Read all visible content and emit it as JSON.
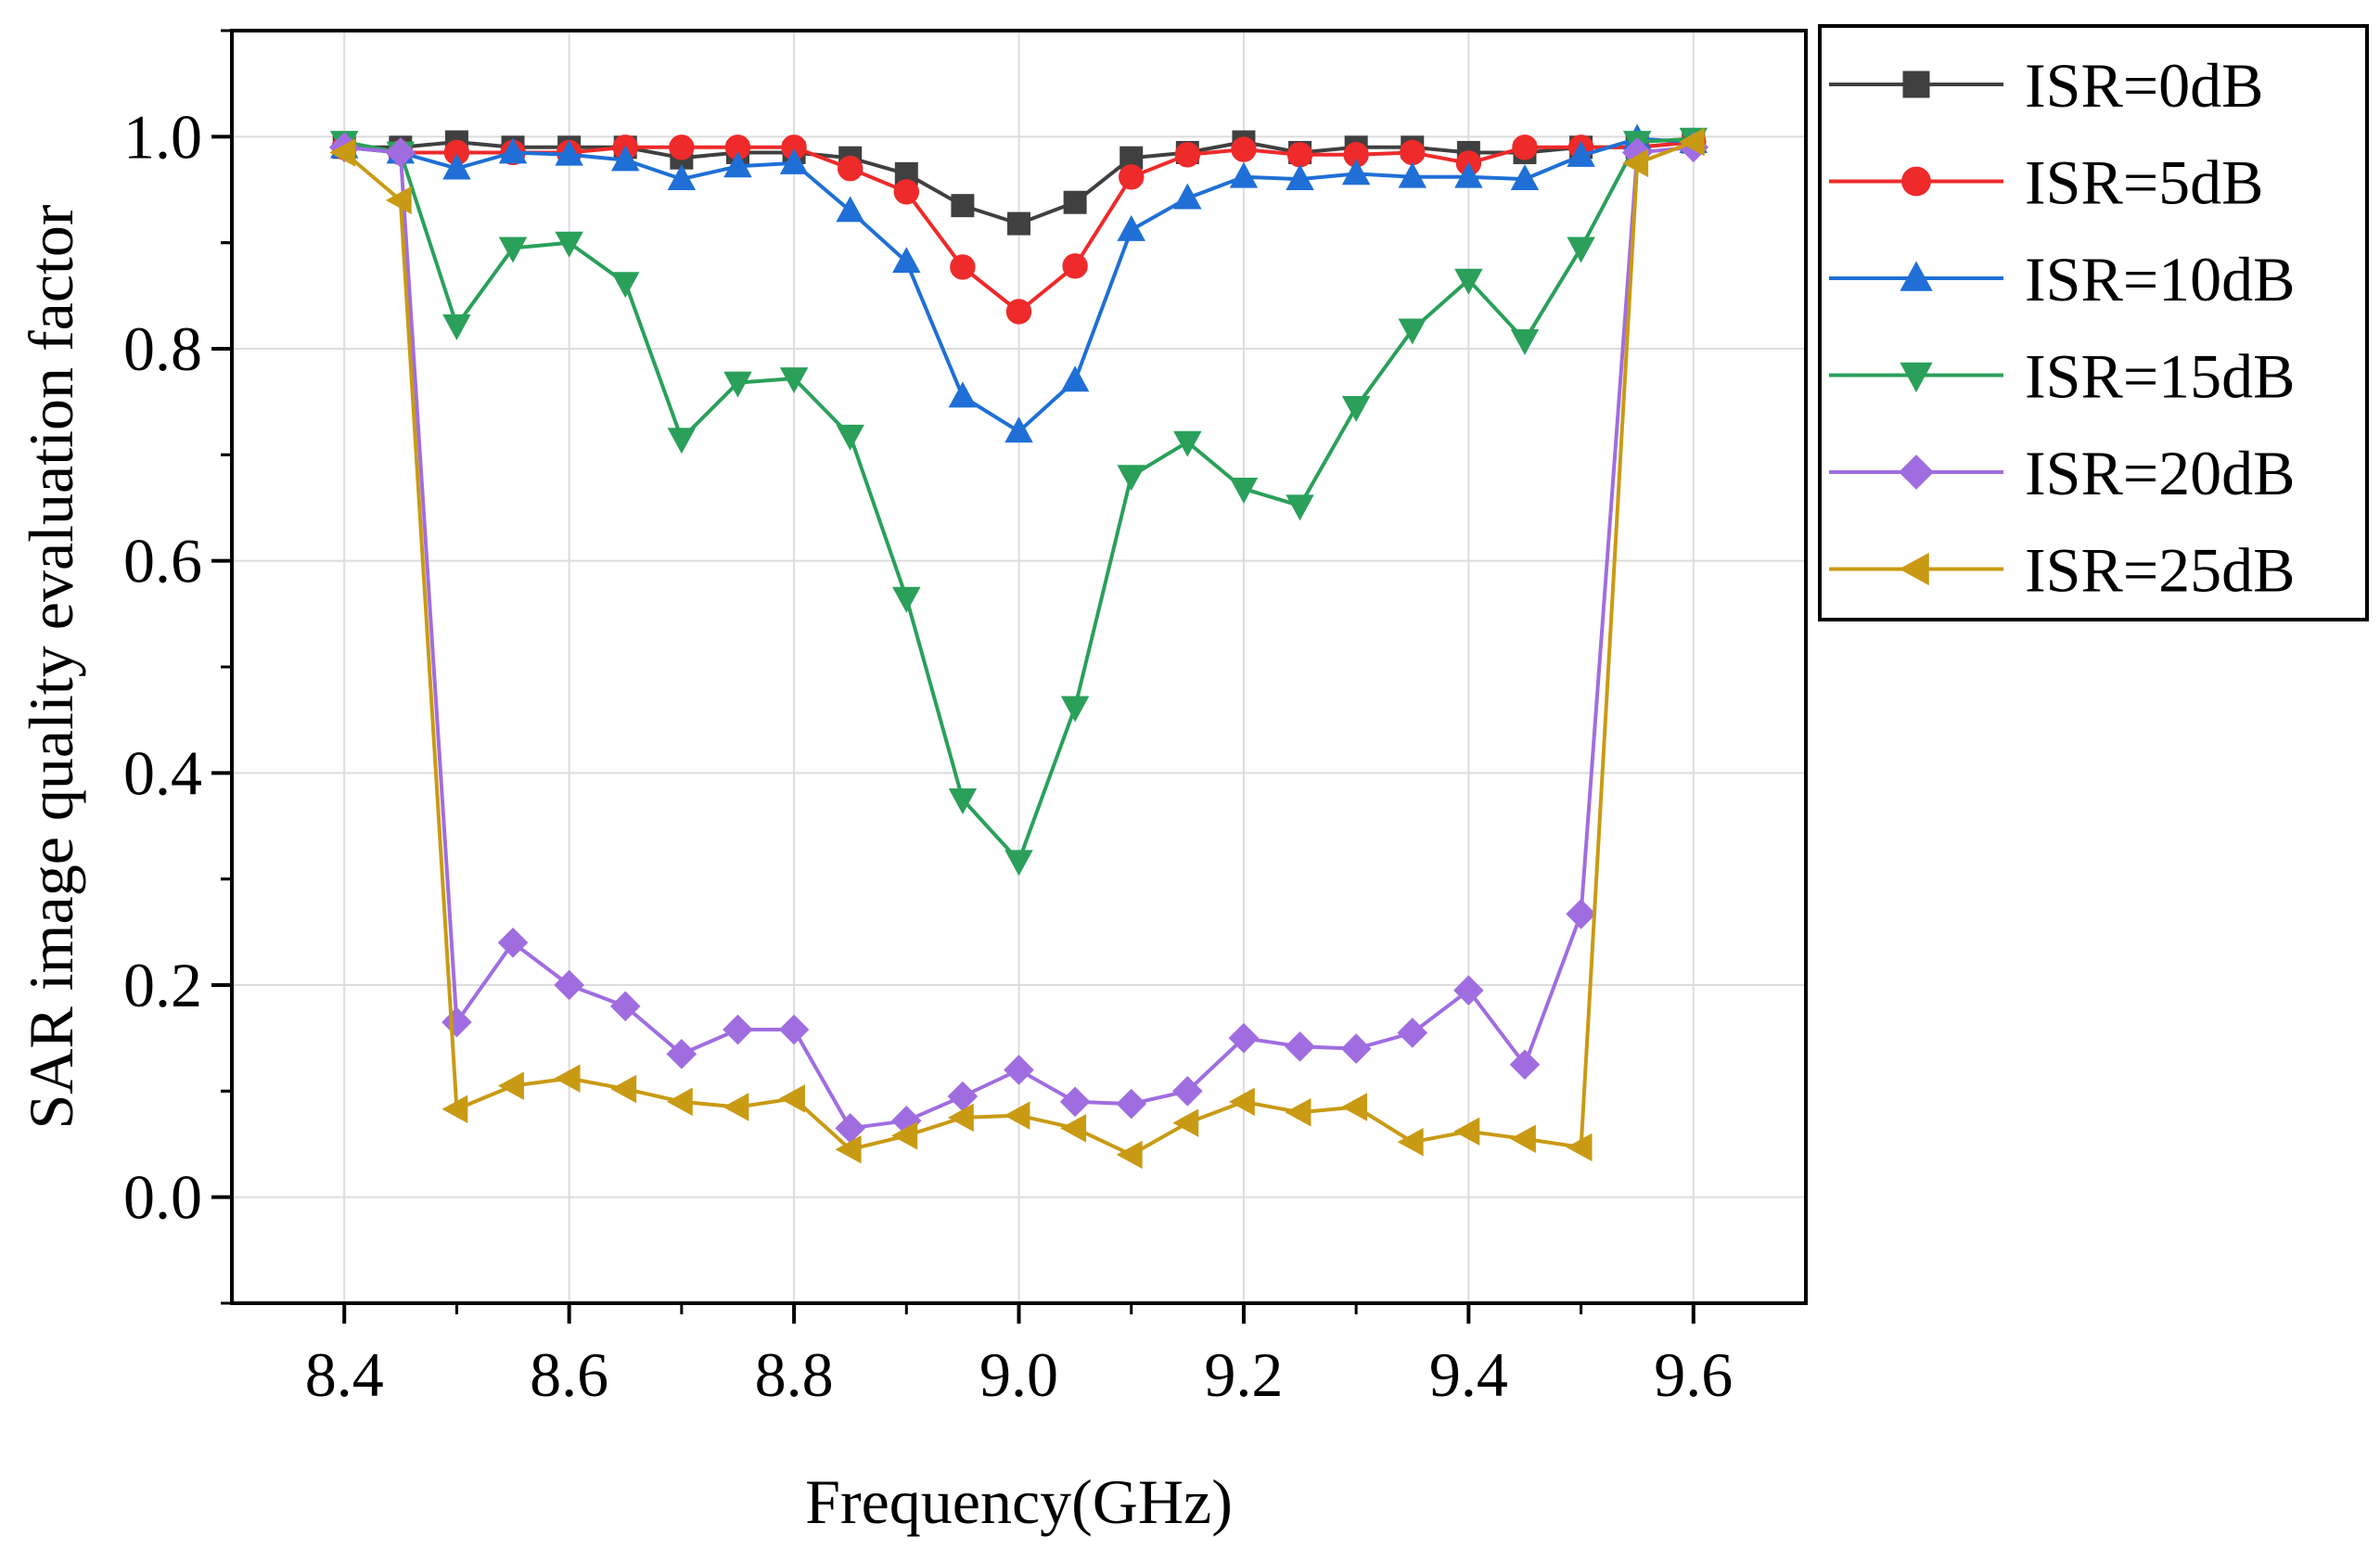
{
  "chart_data": {
    "type": "line",
    "title": "",
    "xlabel": "Frequency(GHz)",
    "ylabel": "SAR image quality evaluation factor",
    "xlim": [
      8.3,
      9.7
    ],
    "ylim": [
      -0.1,
      1.1
    ],
    "xticks": [
      8.4,
      8.6,
      8.8,
      9.0,
      9.2,
      9.4,
      9.6
    ],
    "xtick_labels": [
      "8.4",
      "8.6",
      "8.8",
      "9.0",
      "9.2",
      "9.4",
      "9.6"
    ],
    "yticks": [
      0.0,
      0.2,
      0.4,
      0.6,
      0.8,
      1.0
    ],
    "ytick_labels": [
      "0.0",
      "0.2",
      "0.4",
      "0.6",
      "0.8",
      "1.0"
    ],
    "grid": true,
    "legend_position": "outside-top-right",
    "x": [
      8.4,
      8.45,
      8.5,
      8.55,
      8.6,
      8.65,
      8.7,
      8.75,
      8.8,
      8.85,
      8.9,
      8.95,
      9.0,
      9.05,
      9.1,
      9.15,
      9.2,
      9.25,
      9.3,
      9.35,
      9.4,
      9.45,
      9.5,
      9.55,
      9.6
    ],
    "series": [
      {
        "name": "ISR=0dB",
        "color": "#404040",
        "marker": "square",
        "values": [
          0.99,
          0.99,
          0.995,
          0.99,
          0.99,
          0.99,
          0.98,
          0.985,
          0.985,
          0.98,
          0.965,
          0.935,
          0.918,
          0.938,
          0.98,
          0.985,
          0.995,
          0.985,
          0.99,
          0.99,
          0.985,
          0.985,
          0.99,
          0.99,
          0.995
        ]
      },
      {
        "name": "ISR=5dB",
        "color": "#ee2a2a",
        "marker": "circle",
        "values": [
          0.99,
          0.985,
          0.985,
          0.985,
          0.985,
          0.99,
          0.99,
          0.99,
          0.99,
          0.97,
          0.948,
          0.877,
          0.835,
          0.878,
          0.962,
          0.983,
          0.988,
          0.983,
          0.983,
          0.985,
          0.975,
          0.99,
          0.99,
          0.99,
          0.995
        ]
      },
      {
        "name": "ISR=10dB",
        "color": "#1f6fd6",
        "marker": "triangle-up",
        "values": [
          0.99,
          0.985,
          0.97,
          0.985,
          0.983,
          0.978,
          0.96,
          0.972,
          0.975,
          0.93,
          0.882,
          0.755,
          0.722,
          0.77,
          0.912,
          0.942,
          0.962,
          0.96,
          0.965,
          0.962,
          0.962,
          0.96,
          0.982,
          0.998,
          0.995
        ]
      },
      {
        "name": "ISR=15dB",
        "color": "#2aa05a",
        "marker": "triangle-down",
        "values": [
          0.995,
          0.985,
          0.822,
          0.895,
          0.9,
          0.862,
          0.715,
          0.768,
          0.772,
          0.718,
          0.565,
          0.375,
          0.317,
          0.462,
          0.68,
          0.712,
          0.668,
          0.652,
          0.745,
          0.818,
          0.865,
          0.808,
          0.895,
          0.995,
          0.998
        ]
      },
      {
        "name": "ISR=20dB",
        "color": "#a06de0",
        "marker": "diamond",
        "values": [
          0.99,
          0.985,
          0.165,
          0.24,
          0.2,
          0.18,
          0.135,
          0.158,
          0.158,
          0.065,
          0.072,
          0.095,
          0.12,
          0.09,
          0.088,
          0.1,
          0.15,
          0.142,
          0.14,
          0.155,
          0.195,
          0.125,
          0.267,
          0.985,
          0.99
        ]
      },
      {
        "name": "ISR=25dB",
        "color": "#c99a14",
        "marker": "triangle-left",
        "values": [
          0.985,
          0.94,
          0.083,
          0.105,
          0.112,
          0.102,
          0.09,
          0.085,
          0.093,
          0.045,
          0.058,
          0.075,
          0.077,
          0.065,
          0.04,
          0.07,
          0.09,
          0.08,
          0.085,
          0.052,
          0.062,
          0.055,
          0.047,
          0.975,
          0.995
        ]
      }
    ]
  }
}
